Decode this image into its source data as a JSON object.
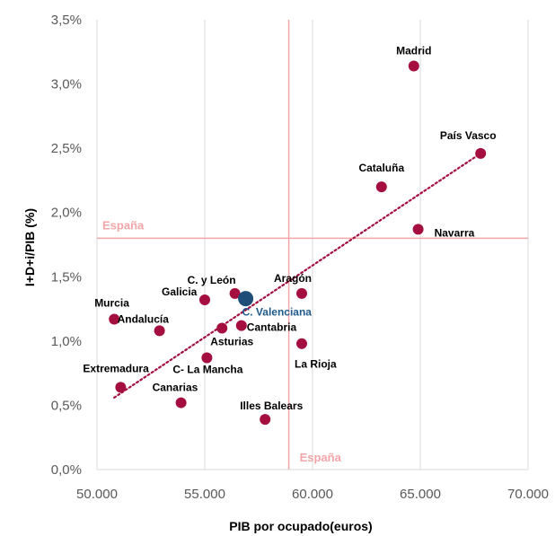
{
  "chart_data": {
    "type": "scatter",
    "title": "",
    "xlabel": "PIB por ocupado(euros)",
    "ylabel": "I+D+i/PIB (%)",
    "xlim": [
      50000,
      70000
    ],
    "ylim": [
      0,
      3.5
    ],
    "x_ticks": [
      50000,
      55000,
      60000,
      65000,
      70000
    ],
    "x_tick_labels": [
      "50.000",
      "55.000",
      "60.000",
      "65.000",
      "70.000"
    ],
    "y_ticks": [
      0,
      0.5,
      1.0,
      1.5,
      2.0,
      2.5,
      3.0,
      3.5
    ],
    "y_tick_labels": [
      "0,0%",
      "0,5%",
      "1,0%",
      "1,5%",
      "2,0%",
      "2,5%",
      "3,0%",
      "3,5%"
    ],
    "grid": "vertical",
    "points": [
      {
        "label": "Madrid",
        "x": 64700,
        "y": 3.14
      },
      {
        "label": "País Vasco",
        "x": 67800,
        "y": 2.46
      },
      {
        "label": "Cataluña",
        "x": 63200,
        "y": 2.2
      },
      {
        "label": "Navarra",
        "x": 64900,
        "y": 1.87
      },
      {
        "label": "Aragón",
        "x": 59500,
        "y": 1.37
      },
      {
        "label": "C. y León",
        "x": 56400,
        "y": 1.37
      },
      {
        "label": "Galicia",
        "x": 55000,
        "y": 1.32
      },
      {
        "label": "C. Valenciana",
        "x": 56900,
        "y": 1.33,
        "highlight": true
      },
      {
        "label": "Murcia",
        "x": 50800,
        "y": 1.17
      },
      {
        "label": "Cantabria",
        "x": 56700,
        "y": 1.12
      },
      {
        "label": "Andalucía",
        "x": 52900,
        "y": 1.08
      },
      {
        "label": "Asturias",
        "x": 55800,
        "y": 1.1
      },
      {
        "label": "La Rioja",
        "x": 59500,
        "y": 0.98
      },
      {
        "label": "C- La Mancha",
        "x": 55100,
        "y": 0.87
      },
      {
        "label": "Extremadura",
        "x": 51100,
        "y": 0.64
      },
      {
        "label": "Canarias",
        "x": 53900,
        "y": 0.52
      },
      {
        "label": "Illes Balears",
        "x": 57800,
        "y": 0.39
      }
    ],
    "trendline": {
      "type": "linear",
      "style": "dotted",
      "x": [
        50800,
        67800
      ],
      "y": [
        0.56,
        2.46
      ]
    },
    "reference_lines": [
      {
        "label": "España",
        "axis": "y",
        "value": 1.8
      },
      {
        "label": "España",
        "axis": "x",
        "value": 58900
      }
    ],
    "colors": {
      "point": "#A50F3F",
      "highlight_point": "#1F4E79",
      "highlight_label": "#1F5A8C",
      "trendline": "#A50F3F",
      "reference": "#F4A5A8",
      "grid": "#D9D9D9"
    }
  }
}
